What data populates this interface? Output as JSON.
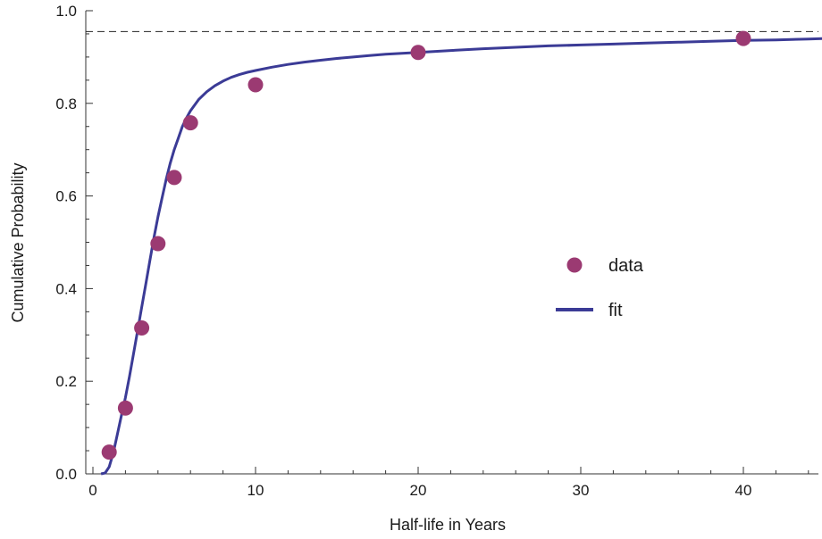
{
  "chart_data": {
    "type": "scatter",
    "xlabel": "Half-life in Years",
    "ylabel": "Cumulative Probability",
    "xlim": [
      0,
      45
    ],
    "ylim": [
      0,
      1.0
    ],
    "x_ticks": [
      "0",
      "10",
      "20",
      "30",
      "40"
    ],
    "y_ticks": [
      "0.0",
      "0.2",
      "0.4",
      "0.6",
      "0.8",
      "1.0"
    ],
    "asymptote": 0.955,
    "legend_position": "center-right",
    "series": [
      {
        "name": "data",
        "kind": "points",
        "color": "#9b3a72",
        "x": [
          1,
          2,
          3,
          4,
          5,
          6,
          10,
          20,
          40
        ],
        "y": [
          0.047,
          0.142,
          0.315,
          0.497,
          0.64,
          0.758,
          0.84,
          0.91,
          0.94
        ]
      },
      {
        "name": "fit",
        "kind": "line",
        "color": "#3b3b96",
        "x": [
          0.5,
          0.75,
          1,
          1.25,
          1.5,
          1.75,
          2,
          2.25,
          2.5,
          2.75,
          3,
          3.25,
          3.5,
          3.75,
          4,
          4.25,
          4.5,
          4.75,
          5,
          5.25,
          5.5,
          5.75,
          6,
          6.5,
          7,
          7.5,
          8,
          8.5,
          9,
          9.5,
          10,
          11,
          12,
          13,
          14,
          15,
          16,
          17,
          18,
          19,
          20,
          22,
          24,
          26,
          28,
          30,
          32,
          34,
          36,
          38,
          40,
          42,
          44,
          45
        ],
        "y": [
          0.0,
          0.002,
          0.015,
          0.045,
          0.085,
          0.125,
          0.165,
          0.21,
          0.26,
          0.31,
          0.36,
          0.41,
          0.46,
          0.51,
          0.555,
          0.595,
          0.635,
          0.67,
          0.7,
          0.725,
          0.75,
          0.768,
          0.784,
          0.808,
          0.825,
          0.838,
          0.848,
          0.856,
          0.862,
          0.867,
          0.871,
          0.878,
          0.884,
          0.889,
          0.893,
          0.897,
          0.9,
          0.903,
          0.906,
          0.908,
          0.91,
          0.914,
          0.918,
          0.921,
          0.924,
          0.926,
          0.928,
          0.93,
          0.932,
          0.934,
          0.936,
          0.937,
          0.939,
          0.94
        ]
      }
    ]
  }
}
